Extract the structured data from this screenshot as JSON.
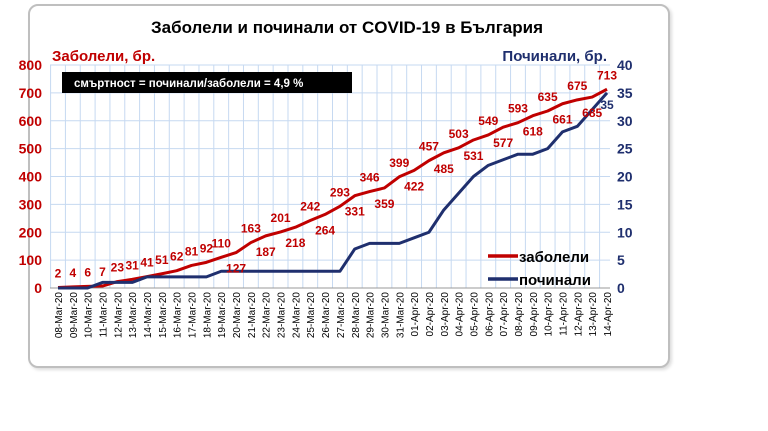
{
  "chart_data": {
    "type": "line",
    "title": "Заболели и починали от COVID-19 в България",
    "ylabel_left": "Заболели, бр.",
    "ylabel_right": "Починали, бр.",
    "annotation": "смъртност = починали/заболели = 4,9 %",
    "ylim_left": [
      0,
      800
    ],
    "ylim_right": [
      0,
      40
    ],
    "yticks_left": [
      0,
      100,
      200,
      300,
      400,
      500,
      600,
      700,
      800
    ],
    "yticks_right": [
      0,
      5,
      10,
      15,
      20,
      25,
      30,
      35,
      40
    ],
    "grid": true,
    "legend": "bottom-right",
    "categories": [
      "08-Mar-20",
      "09-Mar-20",
      "10-Mar-20",
      "11-Mar-20",
      "12-Mar-20",
      "13-Mar-20",
      "14-Mar-20",
      "15-Mar-20",
      "16-Mar-20",
      "17-Mar-20",
      "18-Mar-20",
      "19-Mar-20",
      "20-Mar-20",
      "21-Mar-20",
      "22-Mar-20",
      "23-Mar-20",
      "24-Mar-20",
      "25-Mar-20",
      "26-Mar-20",
      "27-Mar-20",
      "28-Mar-20",
      "29-Mar-20",
      "30-Mar-20",
      "31-Mar-20",
      "01-Apr-20",
      "02-Apr-20",
      "03-Apr-20",
      "04-Apr-20",
      "05-Apr-20",
      "06-Apr-20",
      "07-Apr-20",
      "08-Apr-20",
      "09-Apr-20",
      "10-Apr-20",
      "11-Apr-20",
      "12-Apr-20",
      "13-Apr-20",
      "14-Apr-20"
    ],
    "series": [
      {
        "name": "заболели",
        "axis": "left",
        "color": "#c00000",
        "values": [
          2,
          4,
          6,
          7,
          23,
          31,
          41,
          51,
          62,
          81,
          92,
          110,
          127,
          163,
          187,
          201,
          218,
          242,
          264,
          293,
          331,
          346,
          359,
          399,
          422,
          457,
          485,
          503,
          531,
          549,
          577,
          593,
          618,
          635,
          661,
          675,
          685,
          713
        ]
      },
      {
        "name": "починали",
        "axis": "right",
        "color": "#1f2f6e",
        "values": [
          0,
          0,
          0,
          1,
          1,
          1,
          2,
          2,
          2,
          2,
          2,
          3,
          3,
          3,
          3,
          3,
          3,
          3,
          3,
          3,
          7,
          8,
          8,
          8,
          9,
          10,
          14,
          17,
          20,
          22,
          23,
          24,
          24,
          25,
          28,
          29,
          32,
          35
        ]
      }
    ],
    "last_death_label": "35"
  }
}
